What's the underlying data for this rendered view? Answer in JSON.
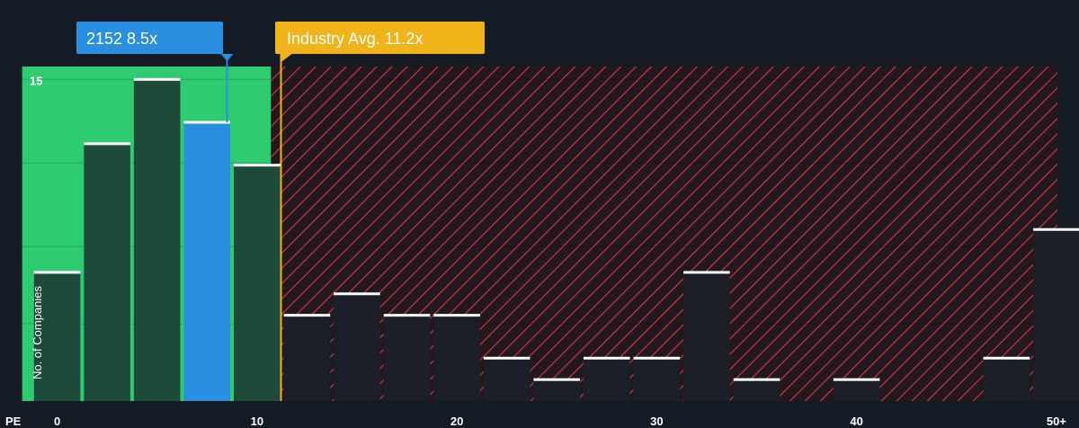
{
  "chart_data": {
    "type": "bar",
    "xlabel": "PE",
    "ylabel": "No. of Companies",
    "x_tick_labels": [
      "0",
      "10",
      "20",
      "30",
      "40",
      "50+"
    ],
    "x_tick_values": [
      0,
      10,
      20,
      30,
      40,
      50
    ],
    "xlim": [
      -2.5,
      50.5
    ],
    "y_tick_labels": [
      "15"
    ],
    "y_tick_values": [
      15
    ],
    "ylim": [
      0,
      15.6
    ],
    "bin_width": 2.5,
    "bins": [
      {
        "x": 0,
        "value": 6
      },
      {
        "x": 2.5,
        "value": 12
      },
      {
        "x": 5,
        "value": 15
      },
      {
        "x": 7.5,
        "value": 13,
        "highlight": true
      },
      {
        "x": 10,
        "value": 11
      },
      {
        "x": 12.5,
        "value": 4
      },
      {
        "x": 15,
        "value": 5
      },
      {
        "x": 17.5,
        "value": 4
      },
      {
        "x": 20,
        "value": 4
      },
      {
        "x": 22.5,
        "value": 2
      },
      {
        "x": 25,
        "value": 1
      },
      {
        "x": 27.5,
        "value": 2
      },
      {
        "x": 30,
        "value": 2
      },
      {
        "x": 32.5,
        "value": 6
      },
      {
        "x": 35,
        "value": 1
      },
      {
        "x": 37.5,
        "value": 0
      },
      {
        "x": 40,
        "value": 1
      },
      {
        "x": 42.5,
        "value": 0
      },
      {
        "x": 45,
        "value": 0
      },
      {
        "x": 47.5,
        "value": 2
      },
      {
        "x": 50,
        "value": 8
      }
    ],
    "company": {
      "label": "2152 8.5x",
      "value": 8.5,
      "color": "#2a8fe0"
    },
    "industry_avg": {
      "label": "Industry Avg. 11.2x",
      "value": 11.2,
      "color": "#f0b31a"
    },
    "fair_zone_color": "#2ecc71",
    "over_zone_color": "#d9404a",
    "grid": true,
    "legend": "none"
  }
}
